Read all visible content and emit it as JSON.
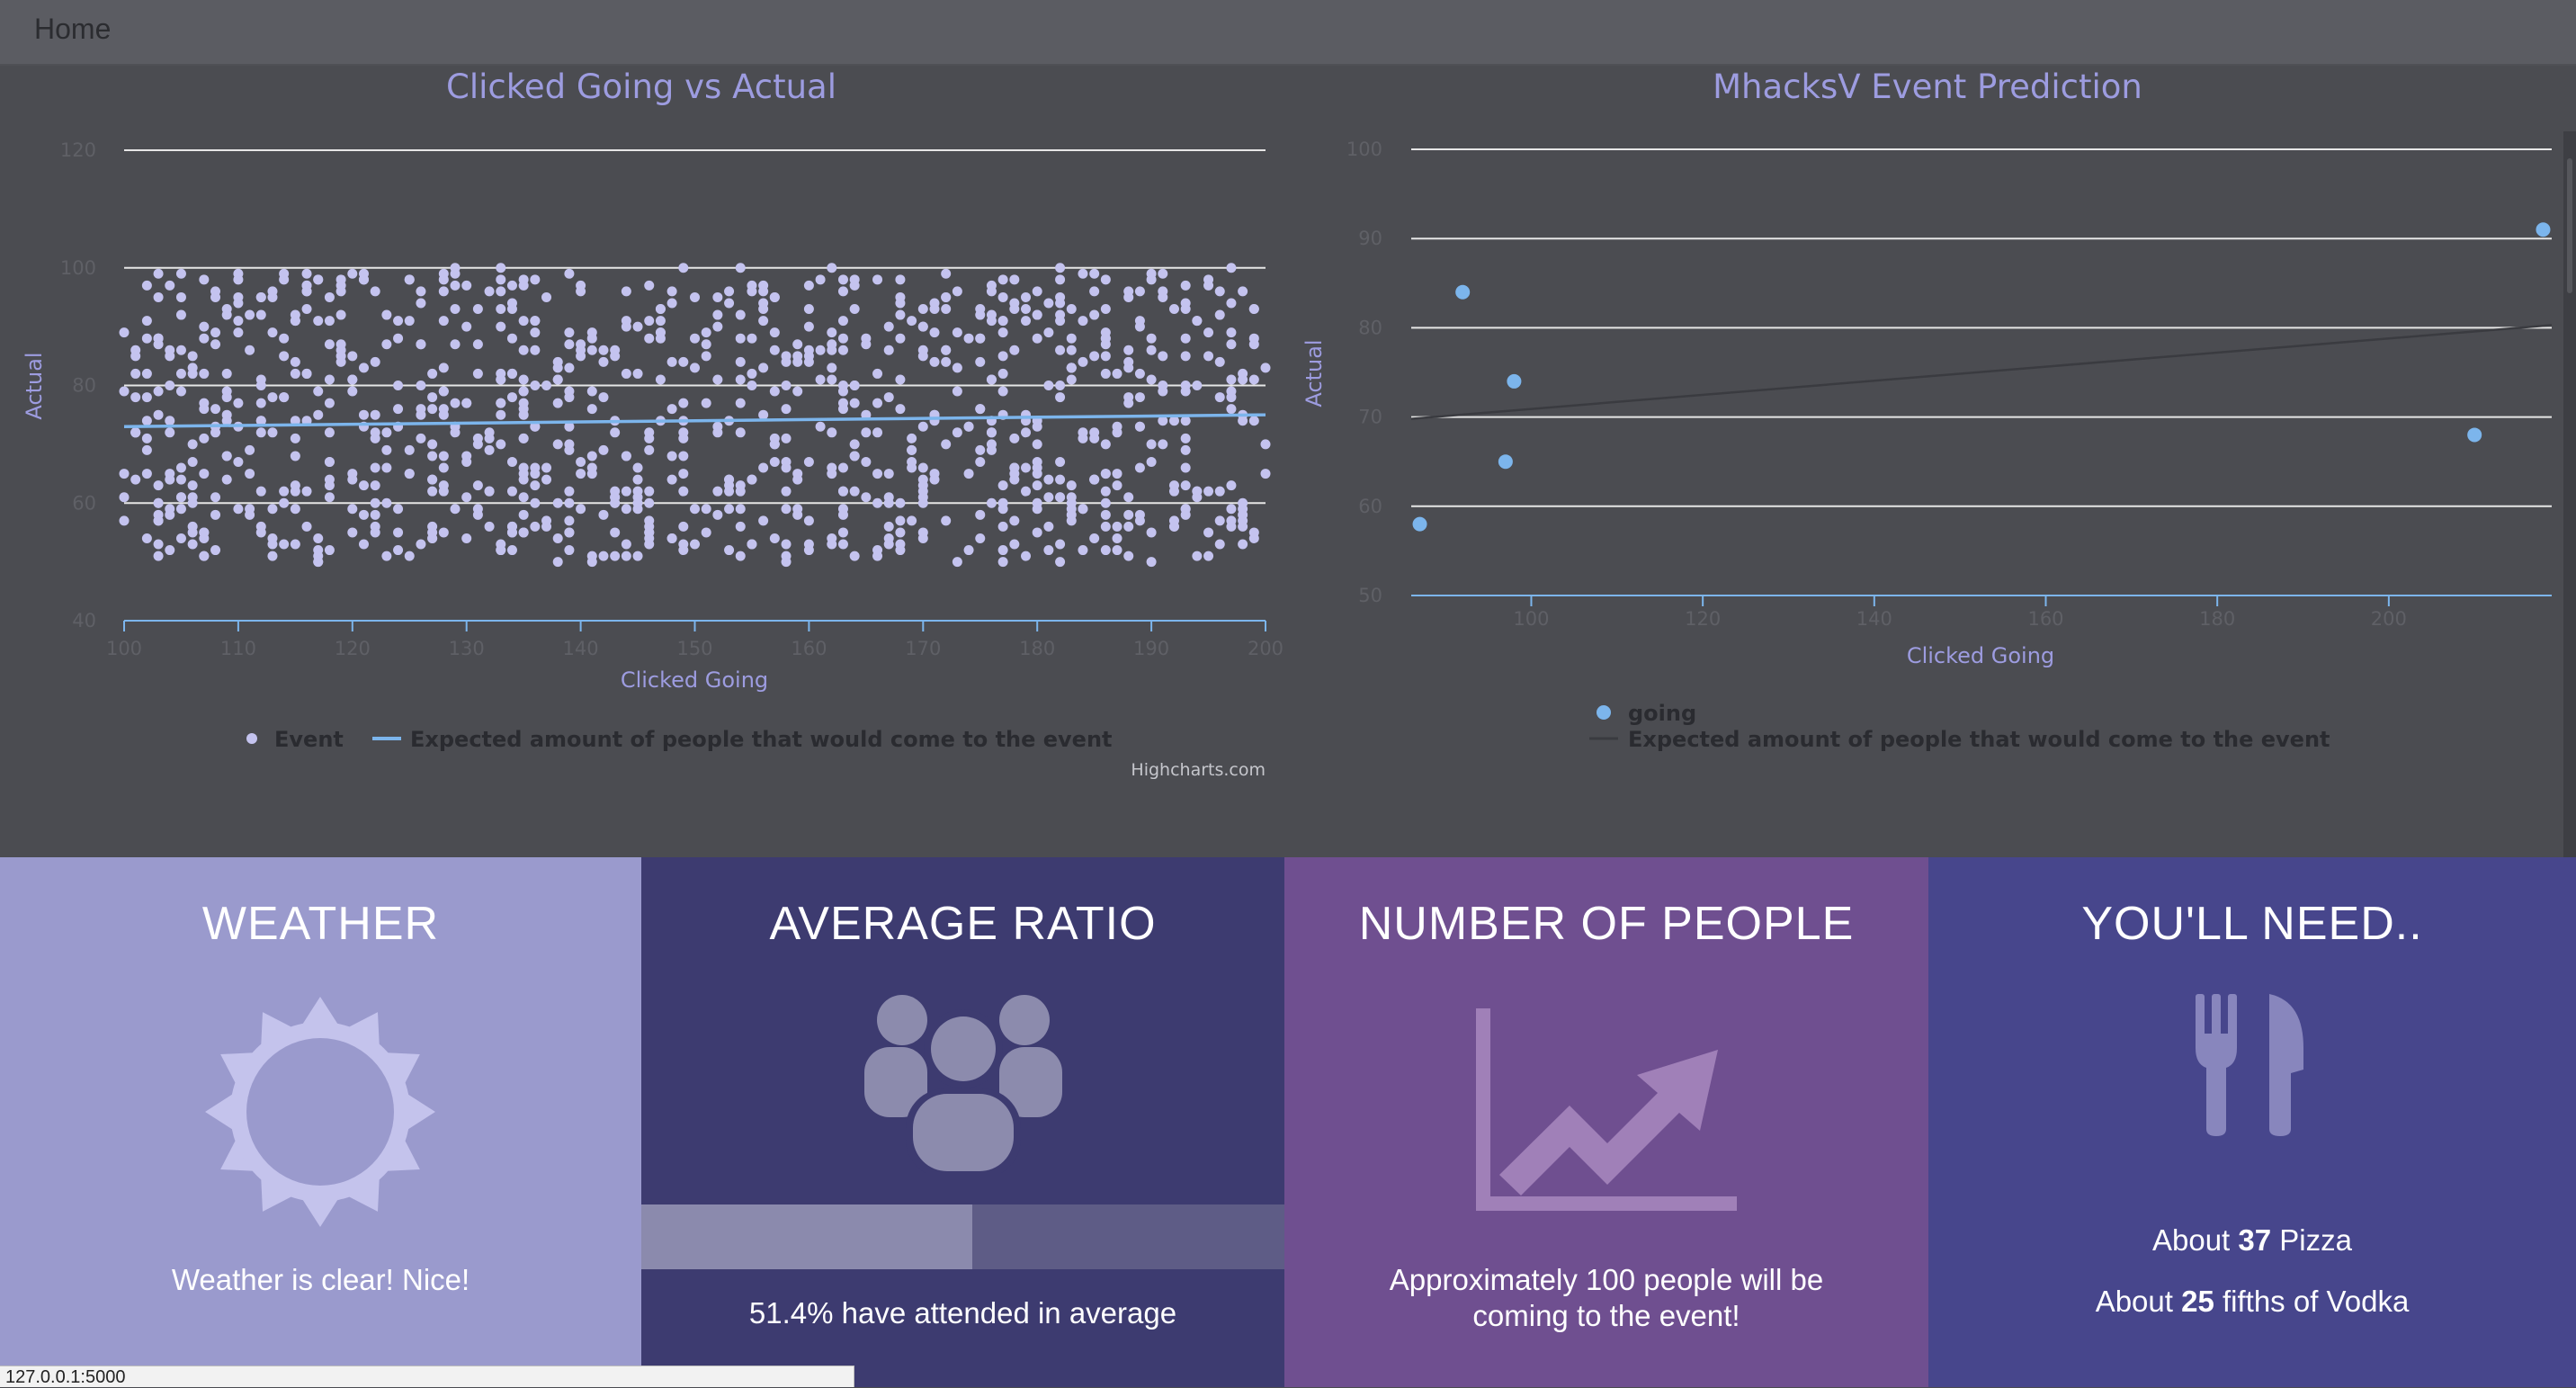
{
  "nav": {
    "home": "Home"
  },
  "chart_data": [
    {
      "type": "scatter",
      "title": "Clicked Going vs Actual",
      "xlabel": "Clicked Going",
      "ylabel": "Actual",
      "xlim": [
        100,
        200
      ],
      "ylim": [
        40,
        120
      ],
      "xticks": [
        "100",
        "110",
        "120",
        "130",
        "140",
        "150",
        "160",
        "170",
        "180",
        "190",
        "200"
      ],
      "yticks": [
        "40",
        "60",
        "80",
        "100",
        "120"
      ],
      "grid": "horizontal",
      "legend_position": "bottom-center",
      "series": [
        {
          "name": "Event",
          "kind": "scatter",
          "color": "#c4c3ef",
          "points_description": "dense uniform scatter",
          "x_range": [
            100,
            200
          ],
          "y_range": [
            50,
            100
          ],
          "count": 1000
        },
        {
          "name": "Expected amount of people that would come to the event",
          "kind": "line",
          "color": "#7cb5ec",
          "x": [
            100,
            200
          ],
          "y": [
            73,
            75
          ]
        }
      ],
      "credits": "Highcharts.com"
    },
    {
      "type": "scatter",
      "title": "MhacksV Event Prediction",
      "xlabel": "Clicked Going",
      "ylabel": "Actual",
      "xlim": [
        86,
        219
      ],
      "ylim": [
        50,
        100
      ],
      "xticks": [
        "100",
        "120",
        "140",
        "160",
        "180",
        "200"
      ],
      "yticks": [
        "50",
        "60",
        "70",
        "80",
        "90",
        "100"
      ],
      "grid": "horizontal",
      "legend_position": "bottom-center",
      "series": [
        {
          "name": "going",
          "kind": "scatter",
          "color": "#7cb5ec",
          "points": [
            [
              87,
              58
            ],
            [
              92,
              84
            ],
            [
              97,
              65
            ],
            [
              98,
              74
            ],
            [
              210,
              68
            ],
            [
              218,
              91
            ]
          ]
        },
        {
          "name": "Expected amount of people that would come to the event",
          "kind": "line",
          "color": "#3a3b40",
          "x": [
            86,
            219
          ],
          "y": [
            69.8,
            80.3
          ]
        }
      ]
    }
  ],
  "panels": {
    "weather": {
      "title": "WEATHER",
      "text": "Weather is clear! Nice!",
      "icon": "sun-icon"
    },
    "ratio": {
      "title": "AVERAGE RATIO",
      "text": "51.4% have attended in average",
      "percent": 51.4,
      "icon": "group-icon"
    },
    "people": {
      "title": "NUMBER OF PEOPLE",
      "text": "Approximately 100 people will be coming to the event!",
      "icon": "trend-chart-icon"
    },
    "need": {
      "title": "YOU'LL NEED..",
      "pizza_prefix": "About ",
      "pizza_count": "37",
      "pizza_suffix": " Pizza",
      "vodka_prefix": "About ",
      "vodka_count": "25",
      "vodka_suffix": " fifths of Vodka",
      "icon": "fork-knife-icon"
    }
  },
  "statusbar": {
    "url": "127.0.0.1:5000"
  },
  "colors": {
    "weather_bg": "#9a9acd",
    "ratio_bg": "#3d3b70",
    "people_bg": "#6f4f90",
    "need_bg": "#47468c",
    "accent": "#9d9ce0"
  }
}
